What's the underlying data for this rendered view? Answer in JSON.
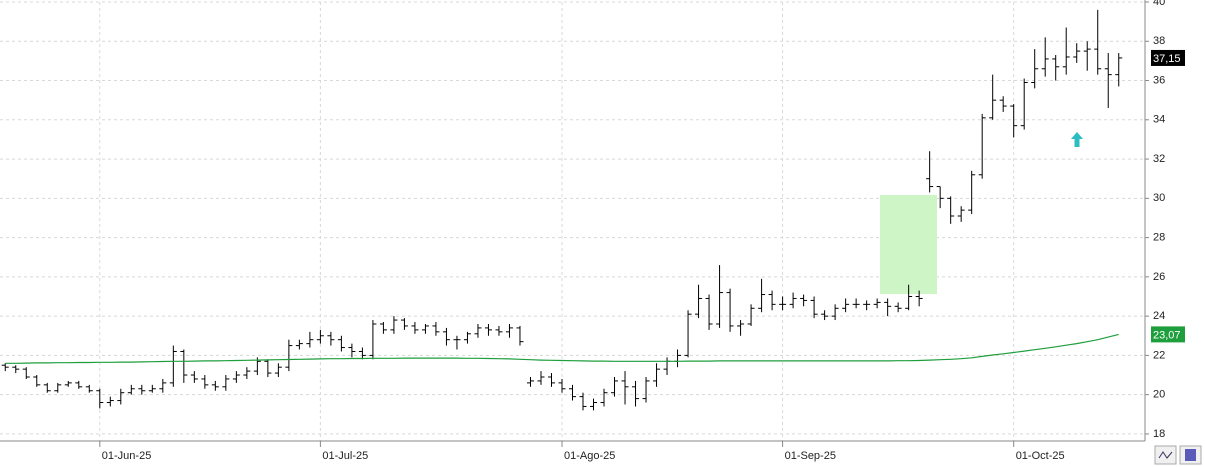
{
  "chart_data": {
    "type": "ohlc",
    "categories": [
      null,
      null,
      null,
      null,
      null,
      null,
      null,
      null,
      null,
      "01-Jun-25",
      null,
      null,
      null,
      null,
      null,
      null,
      null,
      null,
      null,
      null,
      null,
      null,
      null,
      null,
      null,
      null,
      null,
      null,
      null,
      null,
      "01-Jul-25",
      null,
      null,
      null,
      null,
      null,
      null,
      null,
      null,
      null,
      null,
      null,
      null,
      null,
      null,
      null,
      null,
      null,
      null,
      null,
      null,
      null,
      null,
      "01-Ago-25",
      null,
      null,
      null,
      null,
      null,
      null,
      null,
      null,
      null,
      null,
      null,
      null,
      null,
      null,
      null,
      null,
      null,
      null,
      null,
      null,
      "01-Sep-25",
      null,
      null,
      null,
      null,
      null,
      null,
      null,
      null,
      null,
      null,
      null,
      null,
      null,
      null,
      null,
      null,
      null,
      null,
      null,
      null,
      null,
      "01-Oct-25",
      null,
      null,
      null,
      null,
      null,
      null,
      null,
      null,
      null,
      null
    ],
    "open": [
      21.5,
      21.4,
      21.3,
      20.9,
      20.5,
      20.2,
      20.5,
      20.6,
      20.4,
      20.2,
      19.6,
      19.7,
      20.1,
      20.3,
      20.2,
      20.3,
      20.6,
      22.2,
      21.0,
      20.8,
      20.5,
      20.4,
      20.8,
      21.0,
      21.2,
      21.7,
      21.1,
      21.4,
      22.5,
      22.6,
      22.8,
      23.0,
      22.8,
      22.4,
      22.2,
      22.0,
      23.6,
      23.3,
      23.8,
      23.5,
      23.3,
      23.5,
      23.2,
      22.8,
      22.8,
      23.1,
      23.4,
      23.3,
      23.2,
      23.4,
      20.6,
      20.7,
      20.9,
      20.6,
      20.3,
      19.9,
      19.4,
      19.6,
      20.1,
      20.7,
      20.4,
      19.8,
      20.7,
      21.3,
      21.7,
      22.0,
      24.1,
      24.9,
      23.6,
      25.2,
      23.5,
      23.6,
      24.4,
      25.1,
      24.6,
      24.6,
      24.9,
      24.8,
      24.1,
      24.0,
      24.4,
      24.6,
      24.6,
      24.6,
      24.7,
      24.5,
      24.4,
      25.0,
      31.0,
      30.6,
      30.0,
      29.1,
      29.4,
      31.2,
      34.1,
      35.0,
      34.7,
      33.7,
      35.9,
      36.6,
      37.1,
      36.7,
      37.2,
      37.5,
      37.6,
      36.6,
      36.3
    ],
    "high": [
      21.6,
      21.5,
      21.4,
      21.0,
      20.6,
      20.6,
      20.7,
      20.7,
      20.5,
      20.3,
      19.9,
      20.3,
      20.5,
      20.5,
      20.5,
      20.8,
      22.5,
      22.3,
      21.2,
      21.0,
      20.7,
      21.0,
      21.2,
      21.4,
      21.9,
      21.8,
      21.6,
      22.8,
      22.8,
      23.2,
      23.3,
      23.2,
      23.0,
      22.6,
      22.4,
      23.8,
      23.7,
      24.0,
      23.9,
      23.7,
      23.6,
      23.7,
      23.4,
      23.0,
      23.2,
      23.6,
      23.6,
      23.5,
      23.6,
      23.5,
      20.9,
      21.2,
      21.1,
      20.8,
      20.5,
      20.1,
      19.8,
      20.3,
      20.9,
      21.2,
      20.7,
      20.9,
      21.6,
      21.9,
      22.3,
      24.3,
      25.6,
      25.1,
      26.6,
      25.4,
      23.8,
      24.6,
      25.9,
      25.3,
      25.0,
      25.2,
      25.1,
      25.0,
      24.3,
      24.6,
      24.9,
      24.9,
      24.8,
      24.9,
      24.9,
      24.7,
      25.6,
      25.3,
      32.4,
      30.6,
      30.1,
      29.6,
      31.4,
      34.3,
      36.3,
      35.2,
      34.8,
      36.1,
      37.6,
      38.2,
      37.3,
      38.7,
      37.9,
      38.0,
      39.6,
      37.4,
      37.4
    ],
    "low": [
      21.2,
      21.1,
      20.8,
      20.4,
      20.1,
      20.1,
      20.4,
      20.3,
      20.1,
      19.3,
      19.4,
      19.5,
      20.0,
      20.0,
      20.1,
      20.1,
      20.4,
      20.6,
      20.6,
      20.3,
      20.2,
      20.2,
      20.6,
      20.8,
      21.0,
      20.9,
      20.9,
      21.2,
      22.3,
      22.4,
      22.6,
      22.5,
      22.2,
      21.9,
      21.8,
      21.8,
      23.1,
      23.1,
      23.3,
      23.1,
      23.1,
      23.0,
      22.5,
      22.3,
      22.6,
      22.9,
      23.0,
      23.0,
      22.9,
      22.5,
      20.4,
      20.5,
      20.4,
      20.1,
      19.7,
      19.2,
      19.2,
      19.4,
      19.9,
      19.5,
      19.4,
      19.6,
      20.4,
      21.0,
      21.4,
      21.9,
      23.9,
      23.3,
      23.4,
      23.2,
      23.0,
      23.5,
      24.2,
      24.3,
      24.3,
      24.4,
      24.5,
      23.9,
      23.8,
      23.8,
      24.2,
      24.4,
      24.3,
      24.4,
      24.0,
      24.2,
      24.3,
      24.5,
      30.3,
      29.5,
      28.7,
      28.8,
      29.2,
      31.0,
      34.0,
      34.4,
      33.1,
      33.5,
      35.6,
      36.2,
      36.0,
      36.3,
      36.9,
      36.5,
      36.3,
      34.6,
      35.7
    ],
    "close": [
      21.4,
      21.3,
      20.9,
      20.5,
      20.2,
      20.5,
      20.6,
      20.4,
      20.2,
      19.6,
      19.7,
      20.1,
      20.3,
      20.2,
      20.3,
      20.6,
      22.2,
      21.0,
      20.8,
      20.5,
      20.4,
      20.8,
      21.0,
      21.2,
      21.7,
      21.1,
      21.4,
      22.5,
      22.6,
      22.8,
      23.0,
      22.8,
      22.4,
      22.2,
      22.0,
      23.6,
      23.3,
      23.8,
      23.5,
      23.3,
      23.5,
      23.2,
      22.8,
      22.8,
      23.1,
      23.4,
      23.3,
      23.2,
      23.4,
      22.7,
      20.7,
      20.9,
      20.6,
      20.3,
      19.9,
      19.4,
      19.6,
      20.1,
      20.7,
      20.4,
      19.8,
      20.7,
      21.3,
      21.7,
      22.0,
      24.1,
      24.9,
      23.6,
      25.2,
      23.5,
      23.6,
      24.4,
      25.1,
      24.6,
      24.6,
      24.9,
      24.8,
      24.1,
      24.0,
      24.4,
      24.6,
      24.6,
      24.6,
      24.7,
      24.5,
      24.4,
      25.0,
      24.9,
      30.6,
      30.0,
      29.1,
      29.4,
      31.2,
      34.1,
      35.0,
      34.7,
      33.7,
      35.9,
      36.6,
      37.1,
      36.7,
      37.2,
      37.5,
      37.6,
      36.6,
      36.3,
      37.15
    ],
    "bar_color": "#000000",
    "ma": {
      "color": "#1e9e3c",
      "values": [
        21.6,
        21.6,
        21.61,
        21.62,
        21.62,
        21.63,
        21.63,
        21.64,
        21.64,
        21.65,
        21.65,
        21.66,
        21.66,
        21.67,
        21.68,
        21.69,
        21.7,
        21.7,
        21.71,
        21.72,
        21.72,
        21.73,
        21.74,
        21.75,
        21.76,
        21.77,
        21.78,
        21.79,
        21.8,
        21.81,
        21.82,
        21.83,
        21.83,
        21.84,
        21.84,
        21.85,
        21.85,
        21.85,
        21.86,
        21.86,
        21.86,
        21.86,
        21.86,
        21.86,
        21.85,
        21.85,
        21.84,
        21.83,
        21.82,
        21.8,
        21.78,
        21.76,
        21.75,
        21.74,
        21.73,
        21.72,
        21.71,
        21.71,
        21.7,
        21.7,
        21.7,
        21.7,
        21.7,
        21.7,
        21.7,
        21.71,
        21.71,
        21.71,
        21.72,
        21.72,
        21.72,
        21.72,
        21.72,
        21.72,
        21.72,
        21.72,
        21.72,
        21.72,
        21.72,
        21.72,
        21.72,
        21.72,
        21.72,
        21.72,
        21.72,
        21.73,
        21.73,
        21.74,
        21.76,
        21.78,
        21.8,
        21.83,
        21.88,
        21.95,
        22.02,
        22.08,
        22.15,
        22.22,
        22.29,
        22.36,
        22.44,
        22.52,
        22.6,
        22.7,
        22.8,
        22.93,
        23.07
      ]
    },
    "last_price": {
      "value": 37.15,
      "label": "37,15"
    },
    "ma_last": {
      "value": 23.07,
      "label": "23,07"
    },
    "ylim": [
      17.64,
      40
    ],
    "yticks": [
      18,
      20,
      22,
      24,
      26,
      28,
      30,
      32,
      34,
      36,
      38,
      40
    ],
    "grid": true
  }
}
